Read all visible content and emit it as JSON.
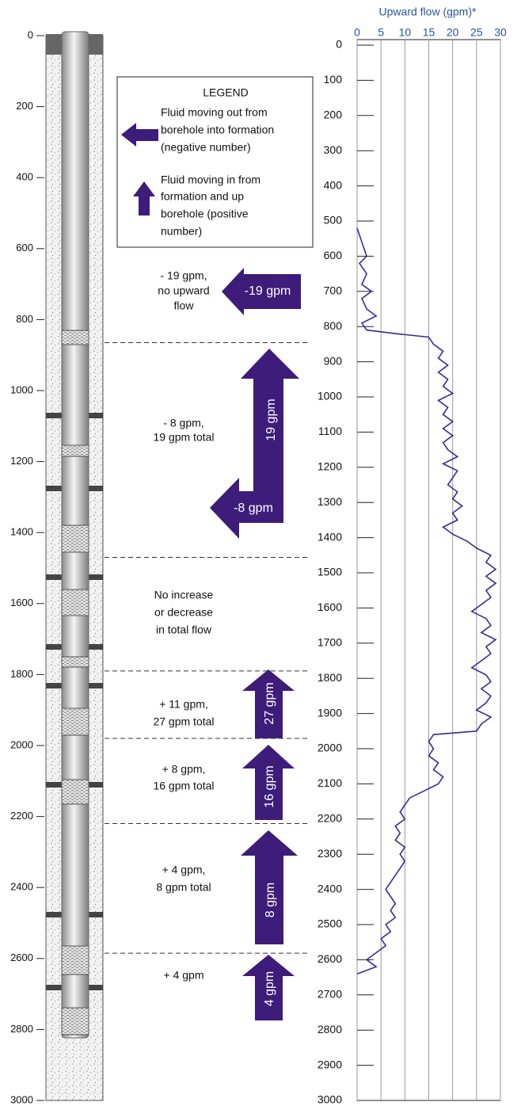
{
  "log_depth_axis": {
    "range": [
      0,
      3000
    ],
    "ticks": [
      0,
      200,
      400,
      600,
      800,
      1000,
      1200,
      1400,
      1600,
      1800,
      2000,
      2200,
      2400,
      2600,
      2800,
      3000
    ]
  },
  "legend": {
    "title": "LEGEND",
    "out_lines": [
      "Fluid moving out from",
      "borehole into formation",
      "(negative number)"
    ],
    "in_lines": [
      "Fluid moving in from",
      "formation and up",
      "borehole (positive",
      "number)"
    ]
  },
  "zones": [
    {
      "lines": [
        "- 19 gpm,",
        "no upward",
        "flow"
      ]
    },
    {
      "lines": [
        "- 8 gpm,",
        "19 gpm total"
      ]
    },
    {
      "lines": [
        "No increase",
        "or decrease",
        "in total flow"
      ]
    },
    {
      "lines": [
        "+ 11 gpm,",
        "27 gpm total"
      ]
    },
    {
      "lines": [
        "+ 8 gpm,",
        "16 gpm total"
      ]
    },
    {
      "lines": [
        "+ 4 gpm,",
        "8 gpm total"
      ]
    },
    {
      "lines": [
        "+ 4 gpm"
      ]
    }
  ],
  "zone_boundaries": [
    865,
    1470,
    1790,
    1980,
    2220,
    2585
  ],
  "arrow_labels": [
    "-19 gpm",
    "19 gpm",
    "-8 gpm",
    "27 gpm",
    "16 gpm",
    "8 gpm",
    "4 gpm"
  ],
  "chart_data": {
    "type": "line",
    "title": "Upward flow (gpm)*",
    "xlim": [
      0,
      30
    ],
    "xticks": [
      0,
      5,
      10,
      15,
      20,
      25,
      30
    ],
    "ylim": [
      0,
      3000
    ],
    "yticks": [
      0,
      100,
      200,
      300,
      400,
      500,
      600,
      700,
      800,
      900,
      1000,
      1100,
      1200,
      1300,
      1400,
      1500,
      1600,
      1700,
      1800,
      1900,
      2000,
      2100,
      2200,
      2300,
      2400,
      2500,
      2600,
      2700,
      2800,
      2900,
      3000
    ],
    "grid": true,
    "x": [
      520,
      560,
      600,
      620,
      650,
      680,
      700,
      720,
      750,
      770,
      790,
      810,
      820,
      830,
      850,
      870,
      890,
      910,
      930,
      950,
      970,
      990,
      1010,
      1030,
      1050,
      1070,
      1090,
      1110,
      1130,
      1150,
      1170,
      1190,
      1210,
      1230,
      1250,
      1270,
      1290,
      1310,
      1330,
      1350,
      1370,
      1390,
      1410,
      1430,
      1450,
      1470,
      1490,
      1510,
      1530,
      1550,
      1570,
      1590,
      1610,
      1630,
      1650,
      1670,
      1690,
      1710,
      1730,
      1750,
      1770,
      1790,
      1810,
      1830,
      1850,
      1870,
      1890,
      1910,
      1930,
      1950,
      1960,
      1980,
      2000,
      2020,
      2040,
      2060,
      2080,
      2100,
      2120,
      2140,
      2160,
      2180,
      2200,
      2220,
      2240,
      2260,
      2280,
      2300,
      2320,
      2340,
      2360,
      2380,
      2400,
      2420,
      2440,
      2460,
      2480,
      2500,
      2520,
      2540,
      2560,
      2580,
      2600,
      2620,
      2640
    ],
    "series": [
      {
        "color": "#3a2a9a",
        "values": [
          0,
          1,
          2,
          0.5,
          2,
          1,
          3,
          1,
          2,
          4,
          1,
          2,
          8,
          15,
          16,
          18,
          17,
          19,
          17,
          19,
          18,
          20,
          17,
          19,
          18,
          20,
          18,
          20,
          18,
          19,
          21,
          18,
          21,
          20,
          19,
          21,
          20,
          22,
          20,
          21,
          18,
          20,
          23,
          25,
          28,
          27,
          29,
          27,
          29,
          27,
          28,
          26,
          24,
          27,
          28,
          26,
          29,
          27,
          28,
          26,
          24,
          27,
          28,
          26,
          28,
          27,
          25,
          28,
          26,
          25,
          16,
          15,
          16,
          15,
          17,
          16,
          18,
          17,
          14,
          11,
          10,
          9,
          10,
          8,
          9,
          8,
          10,
          9,
          10,
          9,
          8,
          7,
          6,
          7,
          8,
          7,
          8,
          6,
          7,
          5,
          6,
          4,
          2,
          4,
          0
        ]
      }
    ]
  }
}
